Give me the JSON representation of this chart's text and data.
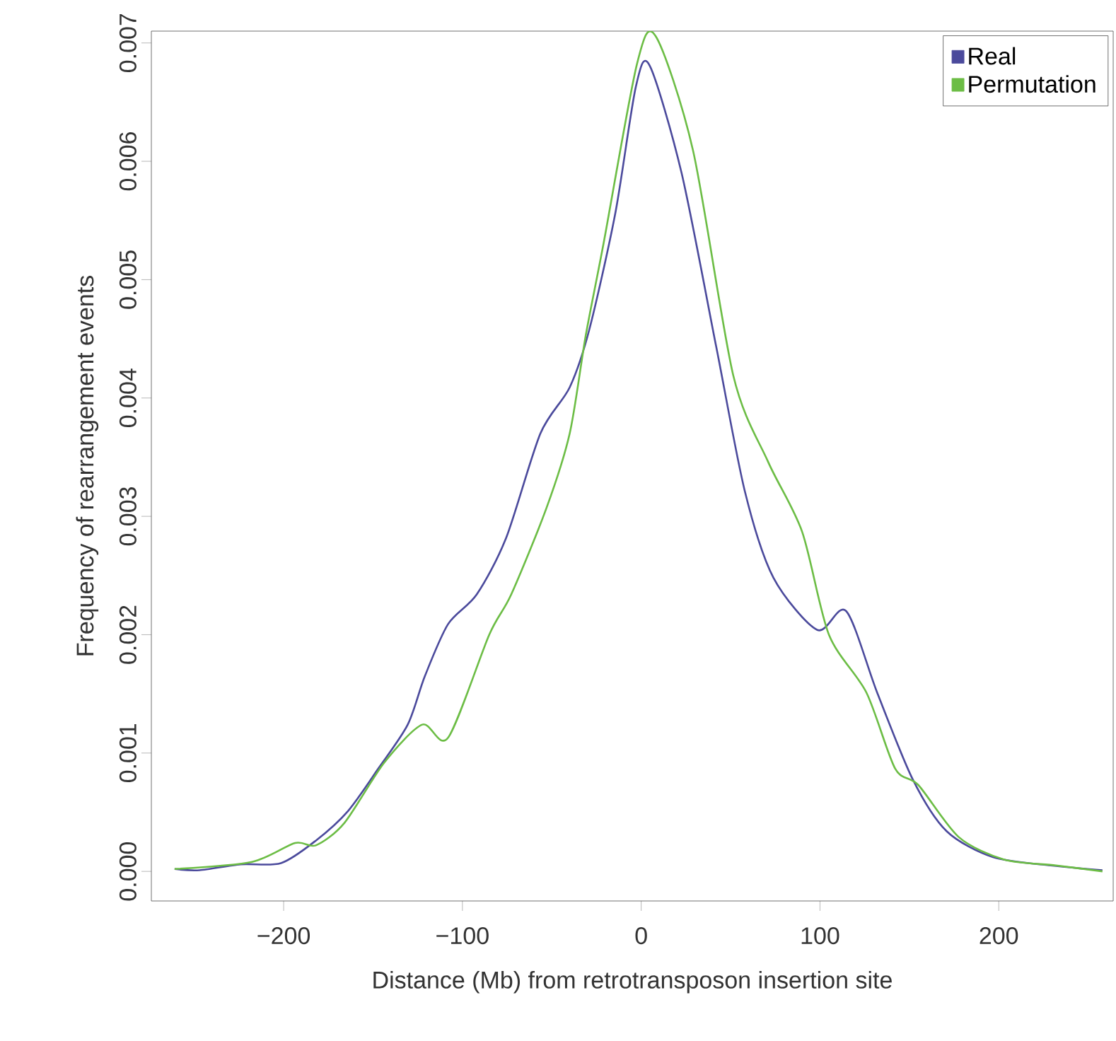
{
  "chart_data": {
    "type": "line",
    "xlabel": "Distance (Mb) from retrotransposon insertion site",
    "ylabel": "Frequency of rearrangement events",
    "xlim": [
      -274,
      264
    ],
    "ylim": [
      -0.00025,
      0.0071
    ],
    "xticks": [
      {
        "value": -200,
        "label": "−200"
      },
      {
        "value": -100,
        "label": "−100"
      },
      0,
      100,
      200
    ],
    "yticks": [
      {
        "value": 0,
        "label": "0.000"
      },
      {
        "value": 0.001,
        "label": "0.001"
      },
      {
        "value": 0.002,
        "label": "0.002"
      },
      {
        "value": 0.003,
        "label": "0.003"
      },
      {
        "value": 0.004,
        "label": "0.004"
      },
      {
        "value": 0.005,
        "label": "0.005"
      },
      {
        "value": 0.006,
        "label": "0.006"
      },
      {
        "value": 0.007,
        "label": "0.007"
      }
    ],
    "legend": "top right",
    "grid": false,
    "line_style": "solid",
    "series": [
      {
        "name": "Real",
        "color": "#4b4a9c",
        "x": [
          -261,
          -247,
          -224,
          -201.5,
          -182,
          -164,
          -147,
          -130.6,
          -121,
          -108,
          -92,
          -75.5,
          -56.4,
          -40,
          -29,
          -14.5,
          -3,
          4.7,
          22.6,
          42,
          58,
          74,
          98.5,
          114.6,
          132,
          151.8,
          170.8,
          196.8,
          229,
          258
        ],
        "values": [
          2e-05,
          1e-05,
          6e-05,
          7e-05,
          0.00026,
          0.00051,
          0.00087,
          0.00124,
          0.00165,
          0.00209,
          0.00234,
          0.00282,
          0.0037,
          0.00409,
          0.00458,
          0.00556,
          0.00663,
          0.00681,
          0.0059,
          0.00443,
          0.00321,
          0.00248,
          0.00204,
          0.0022,
          0.00151,
          0.00078,
          0.00034,
          0.00012,
          5e-05,
          1e-05
        ]
      },
      {
        "name": "Permutation",
        "color": "#6cbd45",
        "x": [
          -261,
          -217.7,
          -193.6,
          -182,
          -166,
          -143.7,
          -122.5,
          -108,
          -85,
          -72.7,
          -53,
          -40,
          -31,
          -21,
          -2.4,
          8,
          29,
          51.5,
          71,
          90,
          105,
          126,
          142,
          155,
          177.6,
          203,
          232,
          258
        ],
        "values": [
          2e-05,
          8e-05,
          0.00024,
          0.00022,
          0.00041,
          0.00092,
          0.00124,
          0.00113,
          0.002,
          0.00234,
          0.00307,
          0.0037,
          0.00453,
          0.00531,
          0.00682,
          0.00706,
          0.00609,
          0.00419,
          0.00346,
          0.00287,
          0.002,
          0.00151,
          0.00087,
          0.00073,
          0.00029,
          0.0001,
          5e-05,
          0.0
        ]
      }
    ]
  }
}
